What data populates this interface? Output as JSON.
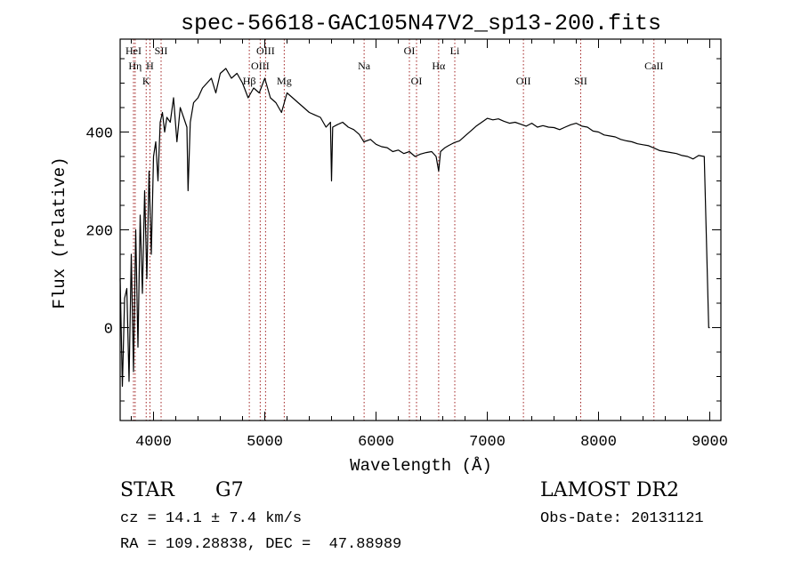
{
  "chart_data": {
    "type": "line",
    "title": "spec-56618-GAC105N47V2_sp13-200.fits",
    "xlabel": "Wavelength (Å)",
    "ylabel": "Flux (relative)",
    "xlim": [
      3700,
      9100
    ],
    "ylim": [
      -190,
      590
    ],
    "x_ticks": [
      4000,
      5000,
      6000,
      7000,
      8000,
      9000
    ],
    "x_tick_labels": [
      "4000",
      "5000",
      "6000",
      "7000",
      "8000",
      "9000"
    ],
    "y_ticks": [
      0,
      200,
      400
    ],
    "y_tick_labels": [
      "0",
      "200",
      "400"
    ],
    "grid": false,
    "series": [
      {
        "color": "#000000",
        "x": [
          3700,
          3720,
          3740,
          3760,
          3780,
          3800,
          3820,
          3840,
          3860,
          3880,
          3900,
          3920,
          3940,
          3960,
          3980,
          4000,
          4020,
          4040,
          4060,
          4080,
          4100,
          4120,
          4150,
          4180,
          4210,
          4240,
          4270,
          4300,
          4310,
          4330,
          4360,
          4400,
          4440,
          4480,
          4520,
          4560,
          4600,
          4650,
          4700,
          4750,
          4800,
          4850,
          4900,
          4950,
          5000,
          5050,
          5100,
          5150,
          5200,
          5250,
          5300,
          5350,
          5400,
          5450,
          5500,
          5550,
          5590,
          5600,
          5610,
          5650,
          5700,
          5750,
          5800,
          5850,
          5890,
          5950,
          6000,
          6050,
          6100,
          6150,
          6200,
          6250,
          6300,
          6350,
          6400,
          6450,
          6500,
          6540,
          6563,
          6580,
          6620,
          6650,
          6700,
          6750,
          6800,
          6850,
          6900,
          6950,
          7000,
          7050,
          7100,
          7150,
          7200,
          7250,
          7300,
          7350,
          7400,
          7450,
          7500,
          7550,
          7600,
          7650,
          7700,
          7750,
          7800,
          7850,
          7900,
          7950,
          8000,
          8050,
          8100,
          8150,
          8200,
          8250,
          8300,
          8350,
          8400,
          8450,
          8500,
          8550,
          8600,
          8650,
          8700,
          8750,
          8800,
          8850,
          8900,
          8950,
          8990,
          9000
        ],
        "y": [
          100,
          -120,
          60,
          80,
          -110,
          150,
          -90,
          200,
          -40,
          230,
          70,
          280,
          100,
          320,
          150,
          350,
          380,
          300,
          420,
          440,
          400,
          430,
          420,
          470,
          380,
          450,
          430,
          410,
          280,
          420,
          460,
          470,
          490,
          500,
          510,
          480,
          520,
          530,
          510,
          520,
          500,
          470,
          490,
          480,
          510,
          470,
          460,
          440,
          480,
          470,
          460,
          450,
          440,
          435,
          430,
          410,
          420,
          300,
          410,
          415,
          420,
          410,
          405,
          395,
          380,
          385,
          375,
          370,
          368,
          360,
          363,
          356,
          360,
          350,
          355,
          358,
          360,
          350,
          320,
          360,
          368,
          372,
          378,
          382,
          392,
          402,
          412,
          420,
          428,
          425,
          427,
          422,
          418,
          420,
          416,
          412,
          418,
          410,
          413,
          410,
          409,
          405,
          410,
          415,
          418,
          412,
          410,
          402,
          400,
          394,
          392,
          390,
          385,
          382,
          380,
          376,
          374,
          372,
          367,
          362,
          360,
          358,
          356,
          352,
          350,
          345,
          352,
          350,
          0,
          0
        ]
      }
    ],
    "lines": [
      {
        "label": "HeI",
        "x": 3820,
        "row": 1
      },
      {
        "label": "Hη",
        "x": 3835,
        "row": 2
      },
      {
        "label": "H",
        "x": 3968,
        "row": 2
      },
      {
        "label": "K",
        "x": 3934,
        "row": 3
      },
      {
        "label": "SII",
        "x": 4068,
        "row": 1
      },
      {
        "label": "OIII",
        "x": 5007,
        "row": 1
      },
      {
        "label": "OIII",
        "x": 4959,
        "row": 2
      },
      {
        "label": "Mg",
        "x": 5175,
        "row": 3
      },
      {
        "label": "Hβ",
        "x": 4861,
        "row": 3
      },
      {
        "label": "Na",
        "x": 5893,
        "row": 2
      },
      {
        "label": "OI",
        "x": 6300,
        "row": 1
      },
      {
        "label": "OI",
        "x": 6364,
        "row": 3
      },
      {
        "label": "Hα",
        "x": 6563,
        "row": 2
      },
      {
        "label": "Li",
        "x": 6708,
        "row": 1
      },
      {
        "label": "OII",
        "x": 7325,
        "row": 3
      },
      {
        "label": "SII",
        "x": 7840,
        "row": 3
      },
      {
        "label": "CaII",
        "x": 8498,
        "row": 2
      }
    ]
  },
  "info": {
    "object_class": "STAR",
    "subclass": "G7",
    "survey": "LAMOST DR2",
    "cz": "cz = 14.1 ± 7.4 km/s",
    "obs_date": "Obs-Date: 20131121",
    "coords": "RA = 109.28838, DEC =  47.88989"
  }
}
